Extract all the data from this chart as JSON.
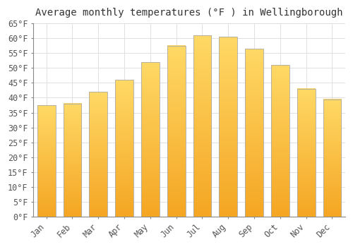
{
  "title": "Average monthly temperatures (°F ) in Wellingborough",
  "months": [
    "Jan",
    "Feb",
    "Mar",
    "Apr",
    "May",
    "Jun",
    "Jul",
    "Aug",
    "Sep",
    "Oct",
    "Nov",
    "Dec"
  ],
  "values": [
    37.5,
    38.0,
    42.0,
    46.0,
    52.0,
    57.5,
    61.0,
    60.5,
    56.5,
    51.0,
    43.0,
    39.5
  ],
  "bar_color_bottom": "#F5A623",
  "bar_color_top": "#FFD966",
  "bar_edge_color": "#AAAAAA",
  "ylim": [
    0,
    65
  ],
  "yticks": [
    0,
    5,
    10,
    15,
    20,
    25,
    30,
    35,
    40,
    45,
    50,
    55,
    60,
    65
  ],
  "background_color": "#FFFFFF",
  "grid_color": "#E0E0E0",
  "title_fontsize": 10,
  "tick_fontsize": 8.5,
  "bar_width": 0.7
}
